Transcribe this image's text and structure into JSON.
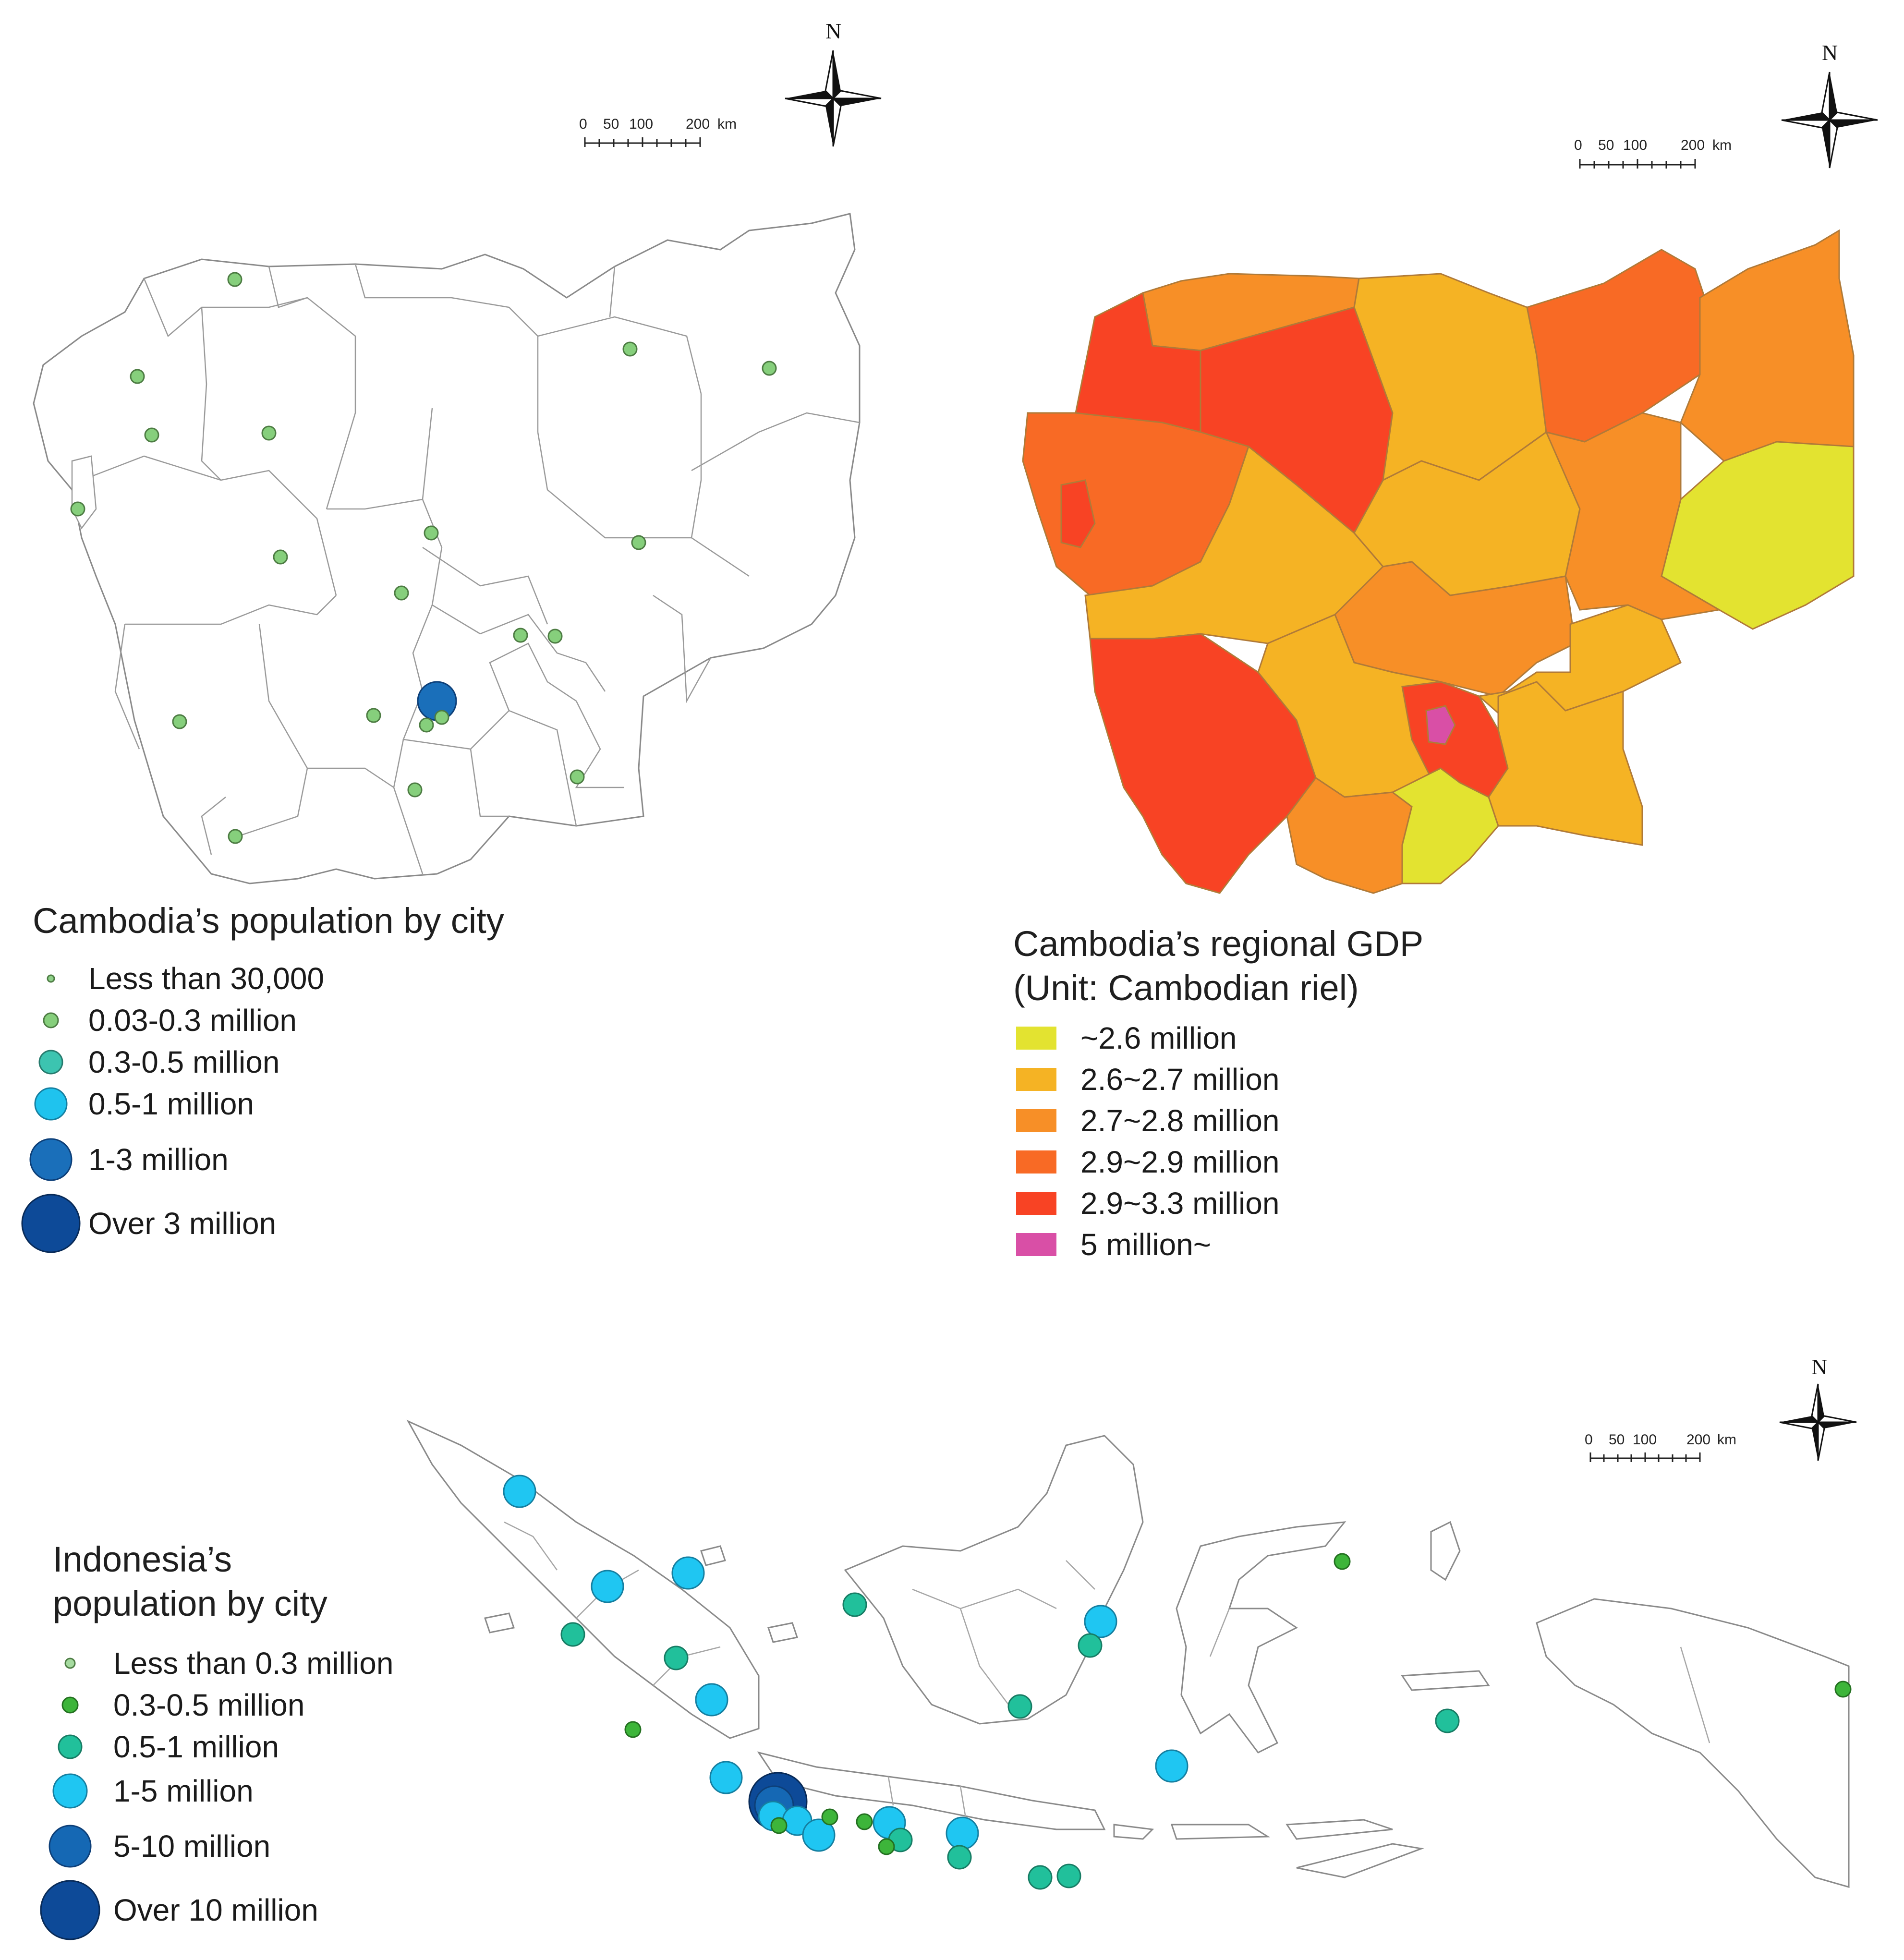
{
  "compass_letter": "N",
  "scale_bar": {
    "labels": [
      "0",
      "50",
      "100",
      "200"
    ],
    "unit": "km"
  },
  "cambodia_population": {
    "title": "Cambodia’s population by city",
    "legend": [
      {
        "label": "Less than 30,000",
        "color": "#8fd18a"
      },
      {
        "label": "0.03-0.3 million",
        "color": "#86cf7c"
      },
      {
        "label": "0.3-0.5 million",
        "color": "#3cc4b0"
      },
      {
        "label": "0.5-1 million",
        "color": "#1fc3ee"
      },
      {
        "label": "1-3 million",
        "color": "#1a6fba"
      },
      {
        "label": "Over 3 million",
        "color": "#0d4a98"
      }
    ]
  },
  "cambodia_gdp": {
    "title": "Cambodia’s regional GDP\n(Unit: Cambodian riel)",
    "legend": [
      {
        "label": "~2.6 million",
        "color": "#e3e330"
      },
      {
        "label": "2.6~2.7 million",
        "color": "#f5b324"
      },
      {
        "label": "2.7~2.8 million",
        "color": "#f78f27"
      },
      {
        "label": "2.9~2.9 million",
        "color": "#f86a25"
      },
      {
        "label": "2.9~3.3 million",
        "color": "#f84324"
      },
      {
        "label": "5 million~",
        "color": "#d94fa6"
      }
    ]
  },
  "indonesia_population": {
    "title": "Indonesia’s\npopulation by city",
    "legend": [
      {
        "label": "Less than 0.3 million",
        "color": "#a6dba0"
      },
      {
        "label": "0.3-0.5 million",
        "color": "#3db53a"
      },
      {
        "label": "0.5-1 million",
        "color": "#21c09b"
      },
      {
        "label": "1-5 million",
        "color": "#1fc6f2"
      },
      {
        "label": "5-10 million",
        "color": "#1568b4"
      },
      {
        "label": "Over 10 million",
        "color": "#0d4a98"
      }
    ]
  }
}
